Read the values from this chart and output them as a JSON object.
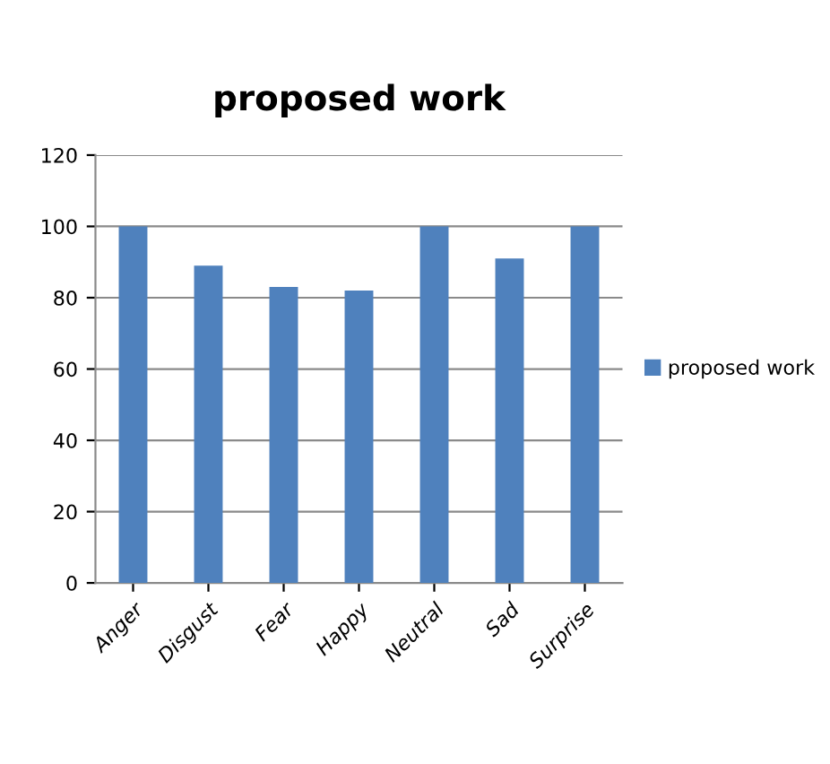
{
  "chart_data": {
    "type": "bar",
    "title": "proposed work",
    "categories": [
      "Anger",
      "Disgust",
      "Fear",
      "Happy",
      "Neutral",
      "Sad",
      "Surprise"
    ],
    "series": [
      {
        "name": "proposed work",
        "color": "#4f81bd",
        "values": [
          100,
          89,
          83,
          82,
          100,
          91,
          100
        ]
      }
    ],
    "ylim": [
      0,
      120
    ],
    "yticks": [
      0,
      20,
      40,
      60,
      80,
      100,
      120
    ],
    "grid": "y",
    "legend": "right"
  }
}
